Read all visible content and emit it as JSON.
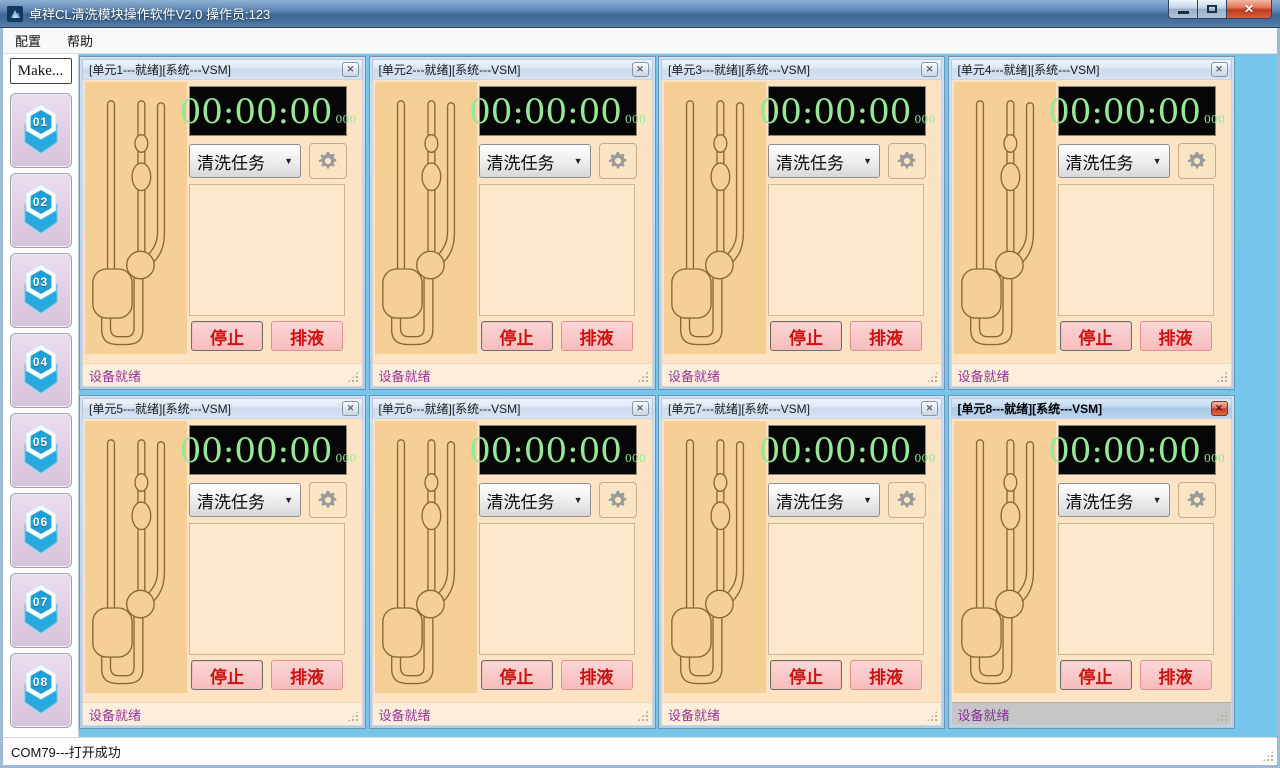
{
  "window": {
    "title": "卓祥CL清洗模块操作软件V2.0 操作员:123"
  },
  "menu": {
    "items": [
      "配置",
      "帮助"
    ]
  },
  "sidebar": {
    "make_label": "Make...",
    "units": [
      {
        "label": "01"
      },
      {
        "label": "02"
      },
      {
        "label": "03"
      },
      {
        "label": "04"
      },
      {
        "label": "05"
      },
      {
        "label": "06"
      },
      {
        "label": "07"
      },
      {
        "label": "08"
      }
    ]
  },
  "panels": [
    {
      "title": "[单元1---就绪][系统---VSM]",
      "timer": "00:00:00",
      "timer_ms": "000",
      "task": "清洗任务",
      "stop_label": "停止",
      "drain_label": "排液",
      "status": "设备就绪",
      "active": false
    },
    {
      "title": "[单元2---就绪][系统---VSM]",
      "timer": "00:00:00",
      "timer_ms": "000",
      "task": "清洗任务",
      "stop_label": "停止",
      "drain_label": "排液",
      "status": "设备就绪",
      "active": false
    },
    {
      "title": "[单元3---就绪][系统---VSM]",
      "timer": "00:00:00",
      "timer_ms": "000",
      "task": "清洗任务",
      "stop_label": "停止",
      "drain_label": "排液",
      "status": "设备就绪",
      "active": false
    },
    {
      "title": "[单元4---就绪][系统---VSM]",
      "timer": "00:00:00",
      "timer_ms": "000",
      "task": "清洗任务",
      "stop_label": "停止",
      "drain_label": "排液",
      "status": "设备就绪",
      "active": false
    },
    {
      "title": "[单元5---就绪][系统---VSM]",
      "timer": "00:00:00",
      "timer_ms": "000",
      "task": "清洗任务",
      "stop_label": "停止",
      "drain_label": "排液",
      "status": "设备就绪",
      "active": false
    },
    {
      "title": "[单元6---就绪][系统---VSM]",
      "timer": "00:00:00",
      "timer_ms": "000",
      "task": "清洗任务",
      "stop_label": "停止",
      "drain_label": "排液",
      "status": "设备就绪",
      "active": false
    },
    {
      "title": "[单元7---就绪][系统---VSM]",
      "timer": "00:00:00",
      "timer_ms": "000",
      "task": "清洗任务",
      "stop_label": "停止",
      "drain_label": "排液",
      "status": "设备就绪",
      "active": false
    },
    {
      "title": "[单元8---就绪][系统---VSM]",
      "timer": "00:00:00",
      "timer_ms": "000",
      "task": "清洗任务",
      "stop_label": "停止",
      "drain_label": "排液",
      "status": "设备就绪",
      "active": true
    }
  ],
  "app_status": {
    "text": "COM79---打开成功"
  },
  "icons": {
    "close_glyph": "✕",
    "panel_close_glyph": "✕",
    "dropdown_glyph": "▼"
  },
  "colors": {
    "accent_blue": "#2aa9e0",
    "mdi_background": "#76c5ea",
    "panel_body": "#fbe3c3",
    "viscometer_bg": "#f6cf96",
    "viscometer_stroke": "#8a6a33",
    "timer_green": "#95e895",
    "status_purple": "#993399",
    "button_red": "#cc1111"
  }
}
